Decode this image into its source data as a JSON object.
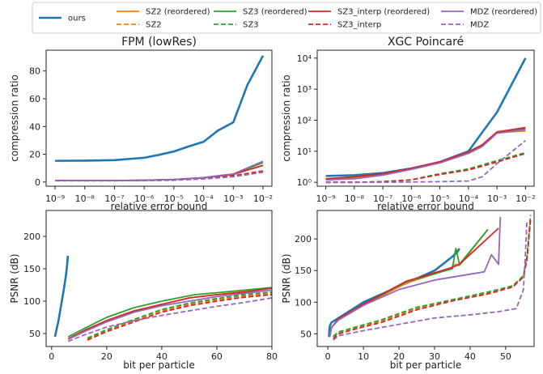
{
  "legend": [
    {
      "name": "ours",
      "color": "#1f77b4",
      "dash": "solid"
    },
    {
      "name": "SZ2 (reordered)",
      "color": "#ff7f0e",
      "dash": "solid"
    },
    {
      "name": "SZ2",
      "color": "#ff7f0e",
      "dash": "dashed"
    },
    {
      "name": "SZ3 (reordered)",
      "color": "#2ca02c",
      "dash": "solid"
    },
    {
      "name": "SZ3",
      "color": "#2ca02c",
      "dash": "dashed"
    },
    {
      "name": "SZ3_interp (reordered)",
      "color": "#d62728",
      "dash": "solid"
    },
    {
      "name": "SZ3_interp",
      "color": "#d62728",
      "dash": "dashed"
    },
    {
      "name": "MDZ (reordered)",
      "color": "#9467bd",
      "dash": "solid"
    },
    {
      "name": "MDZ",
      "color": "#9467bd",
      "dash": "dashed"
    }
  ],
  "chart_data": [
    {
      "type": "line",
      "title": "FPM (lowRes)",
      "xlabel": "relative error bound",
      "ylabel": "compression ratio",
      "xscale": "log",
      "yscale": "linear",
      "xlim": [
        5e-10,
        0.02
      ],
      "ylim": [
        -3,
        95
      ],
      "xticks": [
        1e-09,
        1e-08,
        1e-07,
        1e-06,
        1e-05,
        0.0001,
        0.001,
        0.01
      ],
      "xtick_labels": [
        "10⁻⁹",
        "10⁻⁸",
        "10⁻⁷",
        "10⁻⁶",
        "10⁻⁵",
        "10⁻⁴",
        "10⁻³",
        "10⁻²"
      ],
      "yticks": [
        0,
        20,
        40,
        60,
        80
      ],
      "ytick_labels": [
        "0",
        "20",
        "40",
        "60",
        "80"
      ],
      "series": [
        {
          "legend_index": 0,
          "x": [
            1e-09,
            1e-08,
            1e-07,
            1e-06,
            3e-06,
            1e-05,
            3e-05,
            0.0001,
            0.0003,
            0.001,
            0.003,
            0.01
          ],
          "y": [
            15.3,
            15.4,
            15.8,
            17.5,
            19.5,
            22,
            25.5,
            29,
            37,
            43,
            70,
            91
          ]
        },
        {
          "legend_index": 1,
          "x": [
            1e-09,
            1e-08,
            1e-07,
            1e-06,
            1e-05,
            0.0001,
            0.001,
            0.01
          ],
          "y": [
            1.1,
            1.1,
            1.1,
            1.3,
            1.8,
            3,
            5.5,
            12
          ]
        },
        {
          "legend_index": 2,
          "x": [
            1e-09,
            1e-08,
            1e-07,
            1e-06,
            1e-05,
            0.0001,
            0.001,
            0.01
          ],
          "y": [
            1.0,
            1.0,
            1.0,
            1.1,
            1.5,
            2.6,
            4.5,
            8
          ]
        },
        {
          "legend_index": 3,
          "x": [
            1e-09,
            1e-08,
            1e-07,
            1e-06,
            1e-05,
            0.0001,
            0.001,
            0.01
          ],
          "y": [
            1.1,
            1.1,
            1.1,
            1.3,
            1.9,
            3.2,
            5.8,
            14
          ]
        },
        {
          "legend_index": 4,
          "x": [
            1e-09,
            1e-08,
            1e-07,
            1e-06,
            1e-05,
            0.0001,
            0.001,
            0.01
          ],
          "y": [
            1.0,
            1.0,
            1.0,
            1.1,
            1.5,
            2.5,
            4.3,
            7.5
          ]
        },
        {
          "legend_index": 5,
          "x": [
            1e-09,
            1e-08,
            1e-07,
            1e-06,
            1e-05,
            0.0001,
            0.001,
            0.01
          ],
          "y": [
            1.1,
            1.1,
            1.1,
            1.3,
            1.8,
            3.0,
            5.5,
            12
          ]
        },
        {
          "legend_index": 6,
          "x": [
            1e-09,
            1e-08,
            1e-07,
            1e-06,
            1e-05,
            0.0001,
            0.001,
            0.01
          ],
          "y": [
            1.0,
            1.0,
            1.0,
            1.1,
            1.5,
            2.5,
            4.5,
            8
          ]
        },
        {
          "legend_index": 7,
          "x": [
            1e-09,
            1e-08,
            1e-07,
            1e-06,
            1e-05,
            0.0001,
            0.001,
            0.01
          ],
          "y": [
            1.0,
            1.0,
            1.0,
            1.2,
            1.8,
            3.2,
            5.8,
            15
          ]
        },
        {
          "legend_index": 8,
          "x": [
            1e-09,
            1e-08,
            1e-07,
            1e-06,
            1e-05,
            0.0001,
            0.001,
            0.01
          ],
          "y": [
            0.9,
            0.9,
            0.9,
            1.0,
            1.3,
            2.2,
            3.8,
            7
          ]
        }
      ]
    },
    {
      "type": "line",
      "title": "XGC Poincaré",
      "xlabel": "relative error bound",
      "ylabel": "compression ratio",
      "xscale": "log",
      "yscale": "log",
      "xlim": [
        5e-10,
        0.02
      ],
      "ylim": [
        0.75,
        18000
      ],
      "xticks": [
        1e-09,
        1e-08,
        1e-07,
        1e-06,
        1e-05,
        0.0001,
        0.001,
        0.01
      ],
      "xtick_labels": [
        "10⁻⁹",
        "10⁻⁸",
        "10⁻⁷",
        "10⁻⁶",
        "10⁻⁵",
        "10⁻⁴",
        "10⁻³",
        "10⁻²"
      ],
      "yticks": [
        1,
        10,
        100,
        1000,
        10000
      ],
      "ytick_labels": [
        "10⁰",
        "10¹",
        "10²",
        "10³",
        "10⁴"
      ],
      "series": [
        {
          "legend_index": 0,
          "x": [
            1e-09,
            1e-08,
            1e-07,
            1e-06,
            1e-05,
            0.0001,
            0.0003,
            0.001,
            0.01
          ],
          "y": [
            1.6,
            1.7,
            2.0,
            2.8,
            4.5,
            10,
            40,
            180,
            10000
          ]
        },
        {
          "legend_index": 1,
          "x": [
            1e-09,
            1e-08,
            1e-07,
            1e-06,
            1e-05,
            0.0001,
            0.0003,
            0.001,
            0.01
          ],
          "y": [
            1.2,
            1.4,
            1.8,
            2.7,
            4.3,
            9,
            15,
            40,
            45
          ]
        },
        {
          "legend_index": 2,
          "x": [
            1e-09,
            1e-08,
            1e-07,
            1e-06,
            1e-05,
            0.0001,
            0.001,
            0.01
          ],
          "y": [
            1.0,
            1.0,
            1.05,
            1.2,
            1.8,
            2.5,
            4.5,
            9
          ]
        },
        {
          "legend_index": 3,
          "x": [
            1e-09,
            1e-08,
            1e-07,
            1e-06,
            1e-05,
            0.0001,
            0.0003,
            0.001,
            0.01
          ],
          "y": [
            1.3,
            1.5,
            1.9,
            2.8,
            4.5,
            9.5,
            16,
            40,
            55
          ]
        },
        {
          "legend_index": 4,
          "x": [
            1e-09,
            1e-08,
            1e-07,
            1e-06,
            1e-05,
            0.0001,
            0.001,
            0.01
          ],
          "y": [
            1.0,
            1.0,
            1.05,
            1.2,
            1.9,
            2.7,
            5,
            9
          ]
        },
        {
          "legend_index": 5,
          "x": [
            1e-09,
            1e-08,
            1e-07,
            1e-06,
            1e-05,
            0.0001,
            0.0003,
            0.001,
            0.01
          ],
          "y": [
            1.3,
            1.5,
            1.9,
            2.8,
            4.6,
            9.5,
            16,
            42,
            58
          ]
        },
        {
          "legend_index": 6,
          "x": [
            1e-09,
            1e-08,
            1e-07,
            1e-06,
            1e-05,
            0.0001,
            0.001,
            0.01
          ],
          "y": [
            1.0,
            1.0,
            1.05,
            1.2,
            1.8,
            2.5,
            4.5,
            8.5
          ]
        },
        {
          "legend_index": 7,
          "x": [
            1e-09,
            1e-08,
            1e-07,
            1e-06,
            1e-05,
            0.0001,
            0.0003,
            0.001,
            0.01
          ],
          "y": [
            1.2,
            1.3,
            1.7,
            2.6,
            4.2,
            8.5,
            14,
            38,
            50
          ]
        },
        {
          "legend_index": 8,
          "x": [
            1e-09,
            1e-08,
            1e-07,
            1e-06,
            1e-05,
            0.0001,
            0.0003,
            0.001,
            0.01
          ],
          "y": [
            1.0,
            1.0,
            1.0,
            1.02,
            1.05,
            1.1,
            1.5,
            4,
            22
          ]
        }
      ]
    },
    {
      "type": "line",
      "title": "",
      "xlabel": "bit per particle",
      "ylabel": "PSNR (dB)",
      "xscale": "linear",
      "yscale": "linear",
      "xlim": [
        -2,
        80
      ],
      "ylim": [
        30,
        240
      ],
      "xticks": [
        0,
        20,
        40,
        60,
        80
      ],
      "xtick_labels": [
        "0",
        "20",
        "40",
        "60",
        "80"
      ],
      "yticks": [
        50,
        100,
        150,
        200
      ],
      "ytick_labels": [
        "50",
        "100",
        "150",
        "200"
      ],
      "series": [
        {
          "legend_index": 0,
          "x": [
            1.2,
            2.5,
            3.5,
            4.5,
            5.2,
            5.6,
            5.9
          ],
          "y": [
            45,
            70,
            95,
            120,
            140,
            155,
            170
          ]
        },
        {
          "legend_index": 1,
          "x": [
            6,
            12,
            20,
            30,
            40,
            50,
            60,
            70,
            80
          ],
          "y": [
            42,
            55,
            70,
            85,
            95,
            105,
            110,
            115,
            120
          ]
        },
        {
          "legend_index": 2,
          "x": [
            13,
            20,
            30,
            40,
            50,
            60,
            70,
            80
          ],
          "y": [
            42,
            55,
            70,
            85,
            95,
            102,
            108,
            112
          ]
        },
        {
          "legend_index": 3,
          "x": [
            6,
            12,
            20,
            30,
            40,
            52,
            60,
            70,
            80
          ],
          "y": [
            45,
            58,
            75,
            90,
            100,
            110,
            113,
            117,
            121
          ]
        },
        {
          "legend_index": 4,
          "x": [
            13,
            20,
            30,
            40,
            50,
            60,
            70,
            80
          ],
          "y": [
            43,
            56,
            72,
            87,
            97,
            104,
            110,
            114
          ]
        },
        {
          "legend_index": 5,
          "x": [
            6,
            12,
            20,
            30,
            40,
            50,
            60,
            70,
            80
          ],
          "y": [
            42,
            55,
            70,
            85,
            95,
            105,
            110,
            114,
            120
          ]
        },
        {
          "legend_index": 6,
          "x": [
            13,
            20,
            30,
            40,
            50,
            60,
            70,
            80
          ],
          "y": [
            40,
            53,
            68,
            83,
            93,
            100,
            106,
            110
          ]
        },
        {
          "legend_index": 7,
          "x": [
            6,
            12,
            20,
            30,
            40,
            50,
            60,
            70,
            80
          ],
          "y": [
            41,
            53,
            68,
            83,
            93,
            100,
            107,
            112,
            117
          ]
        },
        {
          "legend_index": 8,
          "x": [
            6,
            12,
            20,
            30,
            40,
            50,
            60,
            70,
            80
          ],
          "y": [
            38,
            48,
            60,
            70,
            78,
            85,
            92,
            98,
            105
          ]
        }
      ]
    },
    {
      "type": "line",
      "title": "",
      "xlabel": "bit per particle",
      "ylabel": "PSNR (dB)",
      "xscale": "linear",
      "yscale": "linear",
      "xlim": [
        -3,
        58
      ],
      "ylim": [
        30,
        245
      ],
      "xticks": [
        0,
        10,
        20,
        30,
        40,
        50
      ],
      "xtick_labels": [
        "0",
        "10",
        "20",
        "30",
        "40",
        "50"
      ],
      "yticks": [
        50,
        100,
        150,
        200
      ],
      "ytick_labels": [
        "50",
        "100",
        "150",
        "200"
      ],
      "series": [
        {
          "legend_index": 0,
          "x": [
            0.3,
            0.5,
            1,
            3,
            10,
            20,
            30,
            33,
            35,
            36.5,
            37
          ],
          "y": [
            45,
            62,
            68,
            75,
            100,
            125,
            150,
            163,
            172,
            180,
            185
          ]
        },
        {
          "legend_index": 1,
          "x": [
            0.5,
            1,
            3,
            10,
            22,
            34,
            36,
            37,
            45
          ],
          "y": [
            45,
            60,
            72,
            95,
            130,
            152,
            160,
            158,
            215
          ]
        },
        {
          "legend_index": 2,
          "x": [
            1.5,
            3,
            8,
            15,
            25,
            35,
            45,
            52,
            55,
            56,
            56.5,
            57
          ],
          "y": [
            45,
            52,
            60,
            70,
            90,
            103,
            115,
            125,
            140,
            170,
            200,
            230
          ]
        },
        {
          "legend_index": 3,
          "x": [
            0.5,
            1,
            3,
            10,
            22,
            35,
            36,
            37,
            45
          ],
          "y": [
            45,
            60,
            73,
            96,
            132,
            153,
            185,
            160,
            215
          ]
        },
        {
          "legend_index": 4,
          "x": [
            1.5,
            3,
            8,
            15,
            25,
            35,
            45,
            52,
            55,
            56,
            56.5,
            57
          ],
          "y": [
            46,
            53,
            61,
            72,
            92,
            104,
            116,
            126,
            142,
            172,
            205,
            238
          ]
        },
        {
          "legend_index": 5,
          "x": [
            0.5,
            1,
            3,
            10,
            22,
            35,
            37,
            48
          ],
          "y": [
            45,
            60,
            74,
            97,
            133,
            155,
            160,
            217
          ]
        },
        {
          "legend_index": 6,
          "x": [
            1.5,
            3,
            8,
            15,
            25,
            35,
            45,
            52,
            55,
            56,
            56.5,
            57
          ],
          "y": [
            42,
            50,
            58,
            68,
            88,
            102,
            113,
            124,
            140,
            168,
            200,
            232
          ]
        },
        {
          "legend_index": 7,
          "x": [
            0.5,
            1,
            3,
            10,
            20,
            30,
            44,
            46,
            48,
            48.5
          ],
          "y": [
            45,
            60,
            72,
            95,
            120,
            135,
            148,
            175,
            160,
            235
          ]
        },
        {
          "legend_index": 8,
          "x": [
            1.5,
            3,
            10,
            20,
            30,
            40,
            48,
            53,
            55,
            55.5,
            56
          ],
          "y": [
            40,
            47,
            55,
            65,
            75,
            80,
            85,
            90,
            120,
            170,
            230
          ]
        }
      ]
    }
  ]
}
